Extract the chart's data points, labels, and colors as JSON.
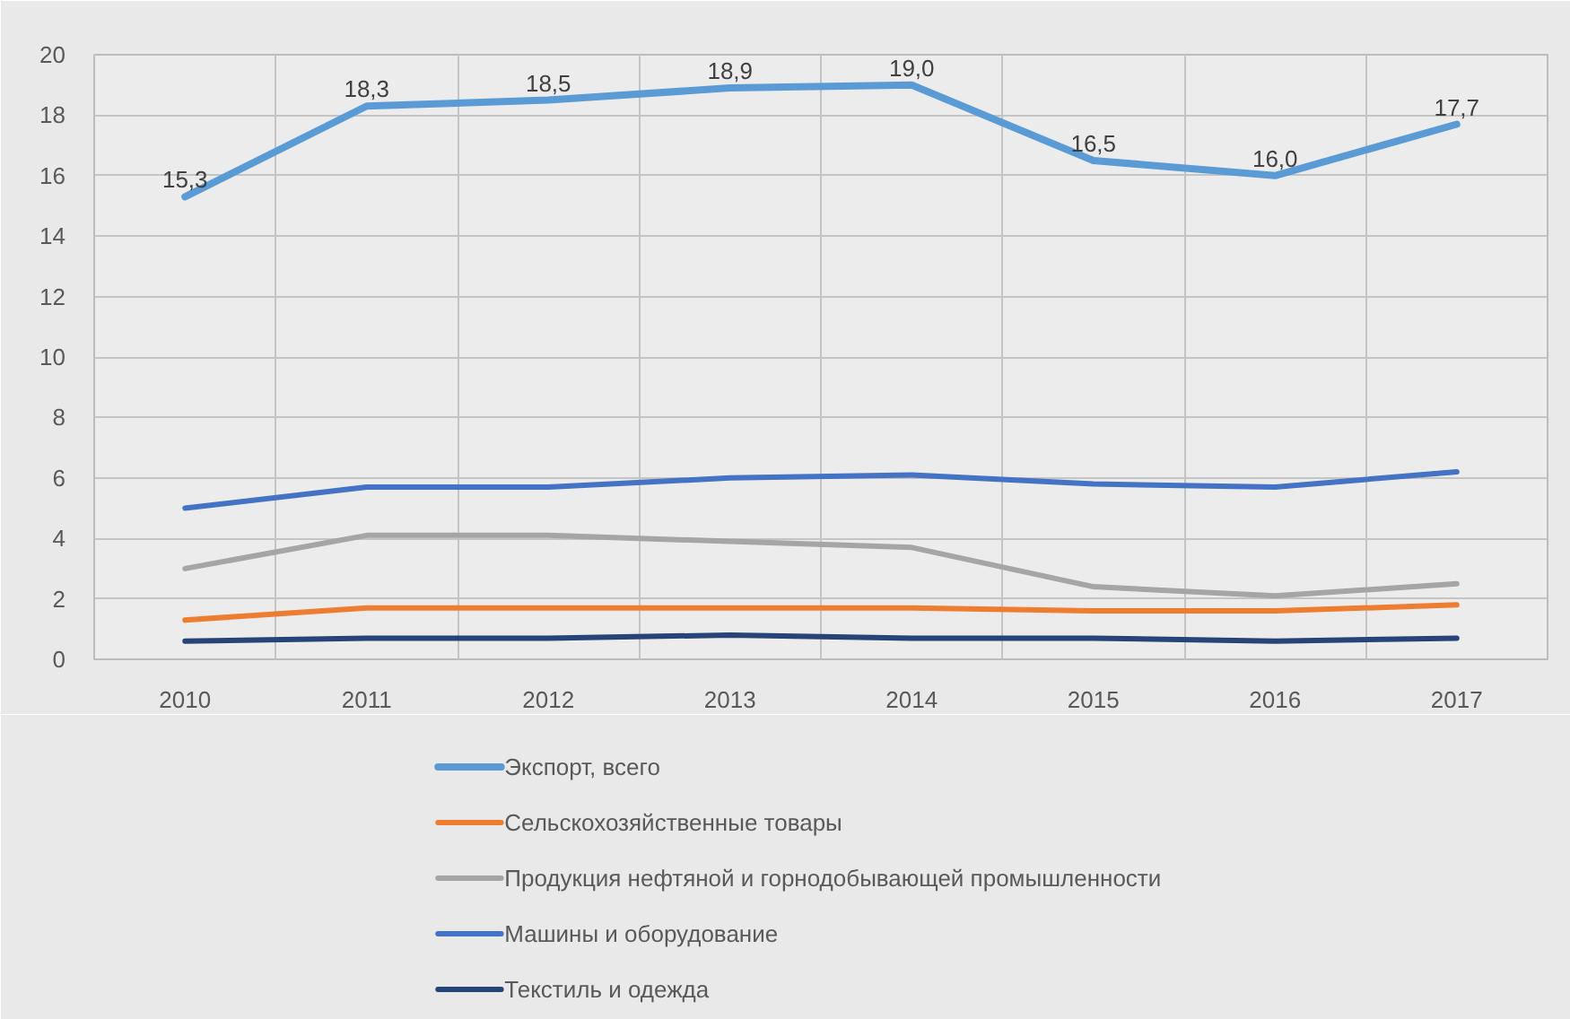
{
  "chart_data": {
    "type": "line",
    "categories": [
      "2010",
      "2011",
      "2012",
      "2013",
      "2014",
      "2015",
      "2016",
      "2017"
    ],
    "ylim": [
      0,
      20
    ],
    "yticks": [
      0,
      2,
      4,
      6,
      8,
      10,
      12,
      14,
      16,
      18,
      20
    ],
    "grid": true,
    "legend": "bottom",
    "series": [
      {
        "name": "Экспорт, всего",
        "color": "#5b9bd5",
        "values": [
          15.3,
          18.3,
          18.5,
          18.9,
          19.0,
          16.5,
          16.0,
          17.7
        ],
        "value_labels": [
          "15,3",
          "18,3",
          "18,5",
          "18,9",
          "19,0",
          "16,5",
          "16,0",
          "17,7"
        ]
      },
      {
        "name": "Сельскохозяйственные товары",
        "color": "#ed7d31",
        "values": [
          1.3,
          1.7,
          1.7,
          1.7,
          1.7,
          1.6,
          1.6,
          1.8
        ]
      },
      {
        "name": "Продукция нефтяной и горнодобывающей промышленности",
        "color": "#a5a5a5",
        "values": [
          3.0,
          4.1,
          4.1,
          3.9,
          3.7,
          2.4,
          2.1,
          2.5
        ]
      },
      {
        "name": "Машины и  оборудование",
        "color": "#4472c4",
        "values": [
          5.0,
          5.7,
          5.7,
          6.0,
          6.1,
          5.8,
          5.7,
          6.2
        ]
      },
      {
        "name": "Текстиль и одежда",
        "color": "#264478",
        "values": [
          0.6,
          0.7,
          0.7,
          0.8,
          0.7,
          0.7,
          0.6,
          0.7
        ]
      }
    ]
  }
}
